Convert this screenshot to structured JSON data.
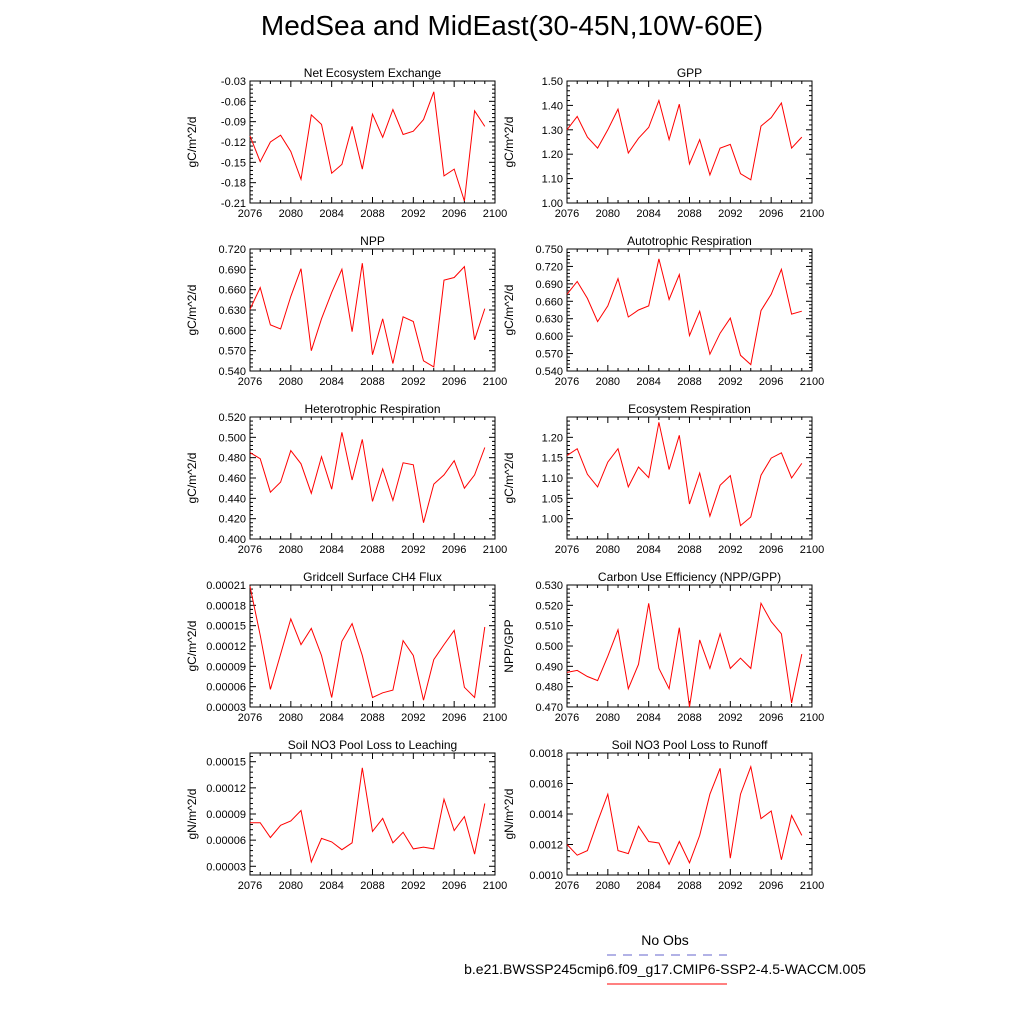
{
  "page": {
    "title": "MedSea and MidEast(30-45N,10W-60E)"
  },
  "legend": {
    "obs_label": "No Obs",
    "obs_color": "#6666cc",
    "run_label": "b.e21.BWSSP245cmip6.f09_g17.CMIP6-SSP2-4.5-WACCM.005",
    "run_color": "#ff0000"
  },
  "chart_data": [
    {
      "type": "line",
      "title": "Net Ecosystem Exchange",
      "ylabel": "gC/m^2/d",
      "xlim": [
        2076,
        2100
      ],
      "ylim": [
        -0.21,
        -0.03
      ],
      "xticks": [
        "2076",
        "2080",
        "2084",
        "2088",
        "2092",
        "2096",
        "2100"
      ],
      "yticks": [
        "-0.21",
        "-0.18",
        "-0.15",
        "-0.12",
        "-0.09",
        "-0.06",
        "-0.03"
      ],
      "x": [
        2076,
        2077,
        2078,
        2079,
        2080,
        2081,
        2082,
        2083,
        2084,
        2085,
        2086,
        2087,
        2088,
        2089,
        2090,
        2091,
        2092,
        2093,
        2094,
        2095,
        2096,
        2097,
        2098,
        2099
      ],
      "values": [
        -0.111,
        -0.149,
        -0.12,
        -0.11,
        -0.134,
        -0.175,
        -0.08,
        -0.094,
        -0.166,
        -0.153,
        -0.097,
        -0.16,
        -0.079,
        -0.113,
        -0.072,
        -0.109,
        -0.104,
        -0.087,
        -0.046,
        -0.17,
        -0.16,
        -0.207,
        -0.074,
        -0.097
      ]
    },
    {
      "type": "line",
      "title": "GPP",
      "ylabel": "gC/m^2/d",
      "xlim": [
        2076,
        2100
      ],
      "ylim": [
        1.0,
        1.5
      ],
      "xticks": [
        "2076",
        "2080",
        "2084",
        "2088",
        "2092",
        "2096",
        "2100"
      ],
      "yticks": [
        "1.00",
        "1.10",
        "1.20",
        "1.30",
        "1.40",
        "1.50"
      ],
      "x": [
        2076,
        2077,
        2078,
        2079,
        2080,
        2081,
        2082,
        2083,
        2084,
        2085,
        2086,
        2087,
        2088,
        2089,
        2090,
        2091,
        2092,
        2093,
        2094,
        2095,
        2096,
        2097,
        2098,
        2099
      ],
      "values": [
        1.3,
        1.355,
        1.27,
        1.225,
        1.3,
        1.385,
        1.205,
        1.265,
        1.31,
        1.42,
        1.26,
        1.405,
        1.16,
        1.26,
        1.115,
        1.225,
        1.24,
        1.12,
        1.095,
        1.315,
        1.35,
        1.41,
        1.225,
        1.27
      ]
    },
    {
      "type": "line",
      "title": "NPP",
      "ylabel": "gC/m^2/d",
      "xlim": [
        2076,
        2100
      ],
      "ylim": [
        0.54,
        0.72
      ],
      "xticks": [
        "2076",
        "2080",
        "2084",
        "2088",
        "2092",
        "2096",
        "2100"
      ],
      "yticks": [
        "0.540",
        "0.570",
        "0.600",
        "0.630",
        "0.660",
        "0.690",
        "0.720"
      ],
      "x": [
        2076,
        2077,
        2078,
        2079,
        2080,
        2081,
        2082,
        2083,
        2084,
        2085,
        2086,
        2087,
        2088,
        2089,
        2090,
        2091,
        2092,
        2093,
        2094,
        2095,
        2096,
        2097,
        2098,
        2099
      ],
      "values": [
        0.631,
        0.663,
        0.608,
        0.602,
        0.65,
        0.691,
        0.57,
        0.617,
        0.656,
        0.69,
        0.598,
        0.699,
        0.564,
        0.617,
        0.551,
        0.62,
        0.613,
        0.555,
        0.546,
        0.674,
        0.678,
        0.694,
        0.586,
        0.632
      ]
    },
    {
      "type": "line",
      "title": "Autotrophic Respiration",
      "ylabel": "gC/m^2/d",
      "xlim": [
        2076,
        2100
      ],
      "ylim": [
        0.54,
        0.75
      ],
      "xticks": [
        "2076",
        "2080",
        "2084",
        "2088",
        "2092",
        "2096",
        "2100"
      ],
      "yticks": [
        "0.540",
        "0.570",
        "0.600",
        "0.630",
        "0.660",
        "0.690",
        "0.720",
        "0.750"
      ],
      "x": [
        2076,
        2077,
        2078,
        2079,
        2080,
        2081,
        2082,
        2083,
        2084,
        2085,
        2086,
        2087,
        2088,
        2089,
        2090,
        2091,
        2092,
        2093,
        2094,
        2095,
        2096,
        2097,
        2098,
        2099
      ],
      "values": [
        0.672,
        0.694,
        0.665,
        0.625,
        0.652,
        0.699,
        0.633,
        0.645,
        0.652,
        0.733,
        0.663,
        0.706,
        0.601,
        0.643,
        0.569,
        0.605,
        0.631,
        0.567,
        0.551,
        0.644,
        0.672,
        0.715,
        0.638,
        0.643
      ]
    },
    {
      "type": "line",
      "title": "Heterotrophic Respiration",
      "ylabel": "gC/m^2/d",
      "xlim": [
        2076,
        2100
      ],
      "ylim": [
        0.4,
        0.52
      ],
      "xticks": [
        "2076",
        "2080",
        "2084",
        "2088",
        "2092",
        "2096",
        "2100"
      ],
      "yticks": [
        "0.400",
        "0.420",
        "0.440",
        "0.460",
        "0.480",
        "0.500",
        "0.520"
      ],
      "x": [
        2076,
        2077,
        2078,
        2079,
        2080,
        2081,
        2082,
        2083,
        2084,
        2085,
        2086,
        2087,
        2088,
        2089,
        2090,
        2091,
        2092,
        2093,
        2094,
        2095,
        2096,
        2097,
        2098,
        2099
      ],
      "values": [
        0.485,
        0.479,
        0.446,
        0.456,
        0.487,
        0.474,
        0.445,
        0.481,
        0.449,
        0.505,
        0.458,
        0.498,
        0.437,
        0.469,
        0.438,
        0.475,
        0.473,
        0.416,
        0.454,
        0.463,
        0.477,
        0.45,
        0.463,
        0.49
      ]
    },
    {
      "type": "line",
      "title": "Ecosystem Respiration",
      "ylabel": "gC/m^2/d",
      "xlim": [
        2076,
        2100
      ],
      "ylim": [
        0.95,
        1.25
      ],
      "xticks": [
        "2076",
        "2080",
        "2084",
        "2088",
        "2092",
        "2096",
        "2100"
      ],
      "yticks": [
        "1.00",
        "1.05",
        "1.10",
        "1.15",
        "1.20"
      ],
      "x": [
        2076,
        2077,
        2078,
        2079,
        2080,
        2081,
        2082,
        2083,
        2084,
        2085,
        2086,
        2087,
        2088,
        2089,
        2090,
        2091,
        2092,
        2093,
        2094,
        2095,
        2096,
        2097,
        2098,
        2099
      ],
      "values": [
        1.155,
        1.172,
        1.109,
        1.078,
        1.139,
        1.172,
        1.078,
        1.127,
        1.101,
        1.237,
        1.121,
        1.205,
        1.036,
        1.112,
        1.006,
        1.082,
        1.106,
        0.983,
        1.004,
        1.107,
        1.149,
        1.162,
        1.1,
        1.136
      ]
    },
    {
      "type": "line",
      "title": "Gridcell Surface CH4 Flux",
      "ylabel": "gC/m^2/d",
      "xlim": [
        2076,
        2100
      ],
      "ylim": [
        3e-05,
        0.00021
      ],
      "xticks": [
        "2076",
        "2080",
        "2084",
        "2088",
        "2092",
        "2096",
        "2100"
      ],
      "yticks": [
        "0.00003",
        "0.00006",
        "0.00009",
        "0.00012",
        "0.00015",
        "0.00018",
        "0.00021"
      ],
      "x": [
        2076,
        2077,
        2078,
        2079,
        2080,
        2081,
        2082,
        2083,
        2084,
        2085,
        2086,
        2087,
        2088,
        2089,
        2090,
        2091,
        2092,
        2093,
        2094,
        2095,
        2096,
        2097,
        2098,
        2099
      ],
      "values": [
        0.000208,
        0.000136,
        5.6e-05,
        0.000108,
        0.00016,
        0.000122,
        0.000146,
        0.000106,
        4.4e-05,
        0.000127,
        0.000153,
        0.000106,
        4.4e-05,
        5.1e-05,
        5.5e-05,
        0.000128,
        0.000106,
        4e-05,
        0.0001,
        0.000122,
        0.000143,
        5.9e-05,
        4.4e-05,
        0.000148
      ]
    },
    {
      "type": "line",
      "title": "Carbon Use Efficiency (NPP/GPP)",
      "ylabel": "NPP/GPP",
      "xlim": [
        2076,
        2100
      ],
      "ylim": [
        0.47,
        0.53
      ],
      "xticks": [
        "2076",
        "2080",
        "2084",
        "2088",
        "2092",
        "2096",
        "2100"
      ],
      "yticks": [
        "0.470",
        "0.480",
        "0.490",
        "0.500",
        "0.510",
        "0.520",
        "0.530"
      ],
      "x": [
        2076,
        2077,
        2078,
        2079,
        2080,
        2081,
        2082,
        2083,
        2084,
        2085,
        2086,
        2087,
        2088,
        2089,
        2090,
        2091,
        2092,
        2093,
        2094,
        2095,
        2096,
        2097,
        2098,
        2099
      ],
      "values": [
        0.487,
        0.488,
        0.485,
        0.483,
        0.495,
        0.508,
        0.479,
        0.491,
        0.521,
        0.489,
        0.479,
        0.509,
        0.47,
        0.503,
        0.489,
        0.506,
        0.489,
        0.494,
        0.489,
        0.521,
        0.512,
        0.506,
        0.472,
        0.496
      ]
    },
    {
      "type": "line",
      "title": "Soil NO3 Pool Loss to Leaching",
      "ylabel": "gN/m^2/d",
      "xlim": [
        2076,
        2100
      ],
      "ylim": [
        2e-05,
        0.00016
      ],
      "xticks": [
        "2076",
        "2080",
        "2084",
        "2088",
        "2092",
        "2096",
        "2100"
      ],
      "yticks": [
        "0.00003",
        "0.00006",
        "0.00009",
        "0.00012",
        "0.00015"
      ],
      "x": [
        2076,
        2077,
        2078,
        2079,
        2080,
        2081,
        2082,
        2083,
        2084,
        2085,
        2086,
        2087,
        2088,
        2089,
        2090,
        2091,
        2092,
        2093,
        2094,
        2095,
        2096,
        2097,
        2098,
        2099
      ],
      "values": [
        8e-05,
        8e-05,
        6.3e-05,
        7.7e-05,
        8.2e-05,
        9.4e-05,
        3.5e-05,
        6.2e-05,
        5.8e-05,
        4.9e-05,
        5.7e-05,
        0.000143,
        7e-05,
        8.5e-05,
        5.7e-05,
        6.9e-05,
        5e-05,
        5.2e-05,
        5e-05,
        0.000107,
        7.1e-05,
        8.7e-05,
        4.4e-05,
        0.000102
      ]
    },
    {
      "type": "line",
      "title": "Soil NO3 Pool Loss to Runoff",
      "ylabel": "gN/m^2/d",
      "xlim": [
        2076,
        2100
      ],
      "ylim": [
        0.001,
        0.0018
      ],
      "xticks": [
        "2076",
        "2080",
        "2084",
        "2088",
        "2092",
        "2096",
        "2100"
      ],
      "yticks": [
        "0.0010",
        "0.0012",
        "0.0014",
        "0.0016",
        "0.0018"
      ],
      "x": [
        2076,
        2077,
        2078,
        2079,
        2080,
        2081,
        2082,
        2083,
        2084,
        2085,
        2086,
        2087,
        2088,
        2089,
        2090,
        2091,
        2092,
        2093,
        2094,
        2095,
        2096,
        2097,
        2098,
        2099
      ],
      "values": [
        0.0012,
        0.00113,
        0.00116,
        0.00135,
        0.00153,
        0.00116,
        0.00114,
        0.00132,
        0.00122,
        0.00121,
        0.00107,
        0.00122,
        0.00108,
        0.00126,
        0.00153,
        0.0017,
        0.00111,
        0.00153,
        0.00171,
        0.00137,
        0.00142,
        0.0011,
        0.00139,
        0.00126
      ]
    }
  ]
}
